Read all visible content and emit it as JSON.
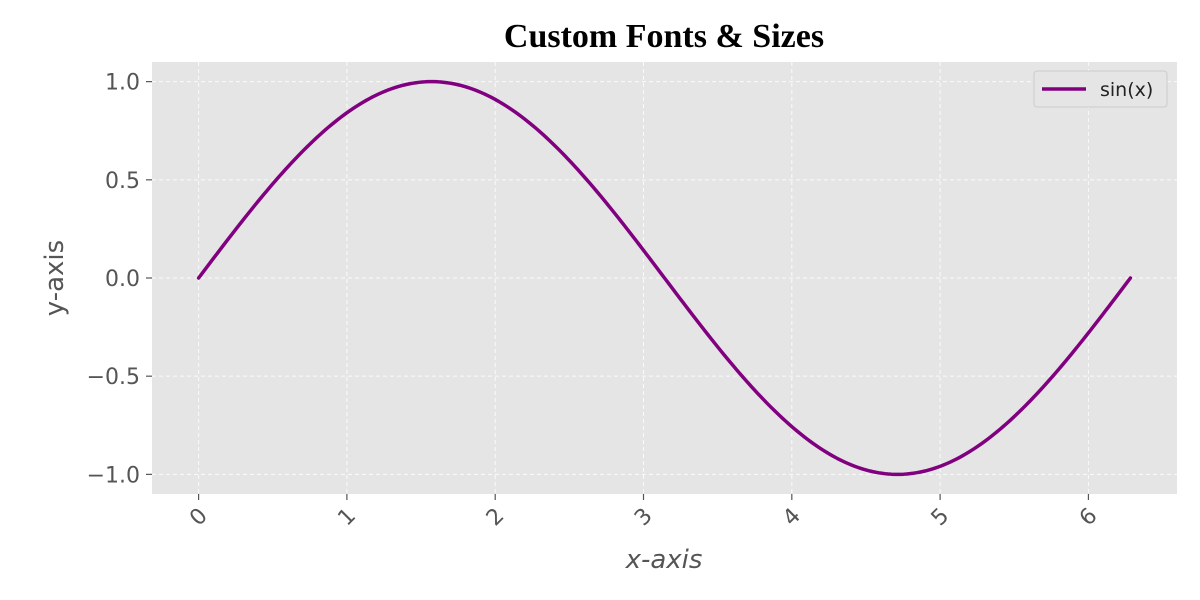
{
  "chart_data": {
    "type": "line",
    "title": "Custom Fonts & Sizes",
    "xlabel": "x-axis",
    "ylabel": "y-axis",
    "xlim": [
      -0.3142,
      6.5973
    ],
    "ylim": [
      -1.1,
      1.1
    ],
    "x_ticks": [
      0,
      1,
      2,
      3,
      4,
      5,
      6
    ],
    "x_tick_labels": [
      "0",
      "1",
      "2",
      "3",
      "4",
      "5",
      "6"
    ],
    "y_ticks": [
      1.0,
      0.5,
      0.0,
      -0.5,
      -1.0
    ],
    "y_tick_labels": [
      "1.0",
      "0.5",
      "0.0",
      "−0.5",
      "−1.0"
    ],
    "x_tick_rotation_deg": 45,
    "grid": true,
    "legend_position": "top-right",
    "series": [
      {
        "name": "sin(x)",
        "color": "#800080",
        "function": "sin",
        "x_range": [
          0,
          6.2832
        ],
        "x": [
          0,
          0.5236,
          1.0472,
          1.5708,
          2.0944,
          2.618,
          3.1416,
          3.6652,
          4.1888,
          4.7124,
          5.236,
          5.7596,
          6.2832
        ],
        "y": [
          0,
          0.5,
          0.866,
          1.0,
          0.866,
          0.5,
          0,
          -0.5,
          -0.866,
          -1.0,
          -0.866,
          -0.5,
          0
        ]
      }
    ]
  },
  "colors": {
    "plot_background": "#E5E5E5",
    "grid": "#FFFFFF",
    "line": "#800080",
    "tick_text": "#555555",
    "title_text": "#000000"
  }
}
